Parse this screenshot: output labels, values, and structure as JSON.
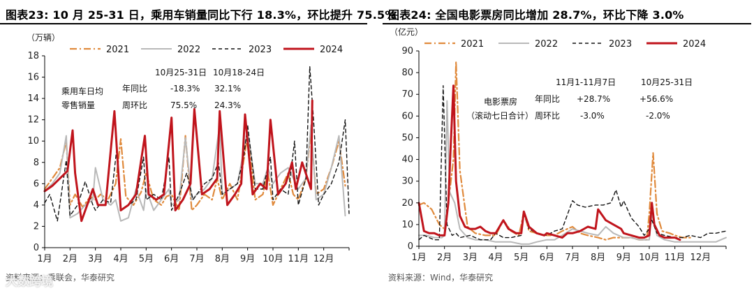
{
  "colors": {
    "c2021": "#e08a3c",
    "c2022": "#b8b8b8",
    "c2023": "#111111",
    "c2024": "#c0141c"
  },
  "left": {
    "title": "图表23:  10 月 25-31 日，乘用车销量同比下行 18.3%，环比提升 75.5%",
    "source": "资料来源：乘联会，华泰研究",
    "watermark": "大数跨境",
    "ann": {
      "label1": "乘用车日均",
      "label2": "零售销量",
      "h1": "10月25-31日",
      "h2": "10月18-24日",
      "r1": "年同比",
      "r2": "周环比",
      "v11": "-18.3%",
      "v12": "32.1%",
      "v21": "75.5%",
      "v22": "24.3%"
    }
  },
  "right": {
    "title": "图表24:  全国电影票房同比增加 28.7%，环比下降 3.0%",
    "source": "资料来源：Wind，华泰研究",
    "ann": {
      "label1": "电影票房",
      "label2": "（滚动七日合计）",
      "h1": "11月1-11月7日",
      "h2": "10月25-31日",
      "r1": "年同比",
      "r2": "周环比",
      "v11": "+28.7%",
      "v12": "+56.6%",
      "v21": "-3.0%",
      "v22": "-2.0%"
    }
  },
  "chart_data": [
    {
      "type": "line",
      "title": "10 月 25-31 日，乘用车销量同比下行 18.3%，环比提升 75.5%",
      "ylabel": "（万辆）",
      "ylim": [
        0,
        18
      ],
      "yticks": [
        0,
        2,
        4,
        6,
        8,
        10,
        12,
        14,
        16,
        18
      ],
      "xlim": [
        1,
        13
      ],
      "xticks": [
        "1月",
        "2月",
        "3月",
        "4月",
        "5月",
        "6月",
        "7月",
        "8月",
        "9月",
        "10月",
        "11月",
        "12月"
      ],
      "legend": [
        "2021",
        "2022",
        "2023",
        "2024"
      ],
      "series": [
        {
          "name": "2021",
          "x": [
            1,
            1.3,
            1.6,
            1.85,
            2.0,
            2.2,
            2.5,
            2.8,
            3.0,
            3.2,
            3.5,
            3.8,
            4.0,
            4.2,
            4.5,
            4.8,
            5.0,
            5.3,
            5.6,
            5.8,
            6.0,
            6.3,
            6.55,
            6.8,
            7.0,
            7.3,
            7.6,
            7.8,
            8.0,
            8.3,
            8.6,
            8.8,
            9.0,
            9.3,
            9.6,
            9.8,
            10.0,
            10.3,
            10.6,
            10.8,
            11.0,
            11.3,
            11.5,
            11.7,
            12.0,
            12.3,
            12.6,
            12.85
          ],
          "values": [
            5.5,
            6.5,
            7.5,
            10.0,
            4.0,
            5.0,
            3.8,
            4.8,
            4.5,
            5.0,
            4.5,
            6.0,
            10.2,
            4.8,
            4.0,
            5.2,
            7.0,
            4.5,
            4.0,
            4.8,
            5.0,
            3.5,
            10.5,
            3.5,
            4.0,
            5.0,
            4.5,
            6.5,
            4.5,
            6.0,
            4.5,
            7.5,
            10.5,
            4.5,
            5.0,
            7.0,
            4.0,
            5.5,
            7.0,
            5.0,
            4.5,
            6.5,
            11.0,
            5.0,
            5.5,
            7.5,
            10.0,
            5.8
          ]
        },
        {
          "name": "2022",
          "x": [
            1,
            1.3,
            1.6,
            1.85,
            2.0,
            2.3,
            2.6,
            2.9,
            3.0,
            3.3,
            3.6,
            3.8,
            4.0,
            4.3,
            4.6,
            4.9,
            5.0,
            5.3,
            5.6,
            5.9,
            6.0,
            6.3,
            6.55,
            6.8,
            7.0,
            7.3,
            7.6,
            7.9,
            8.0,
            8.3,
            8.6,
            8.8,
            9.0,
            9.3,
            9.6,
            9.8,
            10.0,
            10.3,
            10.6,
            10.9,
            11.0,
            11.3,
            11.5,
            11.7,
            12.0,
            12.3,
            12.6,
            12.85
          ],
          "values": [
            5.3,
            6.0,
            7.0,
            10.5,
            2.8,
            3.2,
            4.0,
            4.5,
            7.5,
            4.5,
            4.0,
            4.5,
            2.5,
            2.8,
            5.5,
            3.5,
            5.5,
            3.5,
            4.5,
            5.5,
            4.0,
            4.5,
            10.3,
            4.5,
            5.0,
            5.5,
            6.5,
            11.5,
            5.0,
            5.5,
            6.0,
            8.5,
            11.0,
            6.0,
            6.0,
            7.5,
            6.0,
            7.0,
            7.5,
            6.0,
            5.5,
            6.5,
            11.5,
            4.5,
            5.0,
            7.5,
            10.5,
            3.0
          ]
        },
        {
          "name": "2023",
          "x": [
            1,
            1.2,
            1.5,
            1.85,
            2.0,
            2.3,
            2.6,
            2.9,
            3.0,
            3.3,
            3.6,
            3.85,
            4.0,
            4.3,
            4.6,
            4.9,
            5.0,
            5.3,
            5.6,
            5.9,
            6.0,
            6.3,
            6.6,
            6.85,
            7.0,
            7.3,
            7.6,
            7.85,
            8.0,
            8.3,
            8.6,
            8.85,
            9.0,
            9.3,
            9.6,
            9.9,
            10.0,
            10.3,
            10.6,
            10.85,
            11.0,
            11.3,
            11.45,
            11.6,
            11.8,
            12.0,
            12.3,
            12.6,
            12.85,
            13.0
          ],
          "values": [
            4.2,
            5.0,
            2.5,
            8.2,
            3.0,
            4.0,
            6.2,
            4.0,
            3.5,
            4.5,
            4.2,
            9.5,
            3.5,
            4.0,
            4.5,
            8.5,
            4.5,
            5.0,
            4.5,
            8.5,
            3.5,
            5.0,
            7.0,
            4.5,
            5.0,
            6.0,
            6.5,
            8.0,
            5.0,
            5.5,
            6.0,
            8.5,
            11.5,
            5.5,
            5.5,
            8.5,
            4.5,
            5.5,
            5.0,
            10.0,
            4.0,
            6.5,
            17.0,
            12.0,
            4.0,
            5.0,
            6.0,
            8.0,
            12.0,
            3.2
          ]
        },
        {
          "name": "2024",
          "x": [
            1,
            1.3,
            1.6,
            1.9,
            2.1,
            2.2,
            2.45,
            2.75,
            2.9,
            3.1,
            3.4,
            3.75,
            4.0,
            4.3,
            4.6,
            4.95,
            5.1,
            5.4,
            5.7,
            6.0,
            6.15,
            6.45,
            6.75,
            6.9,
            7.2,
            7.5,
            7.8,
            7.9,
            8.2,
            8.5,
            8.75,
            8.9,
            9.2,
            9.5,
            9.75,
            9.9,
            10.2,
            10.5,
            10.75,
            10.9,
            11.15,
            11.5,
            11.55
          ],
          "values": [
            5.3,
            5.8,
            6.5,
            7.2,
            11.0,
            7.0,
            2.5,
            4.5,
            5.5,
            4.0,
            4.0,
            12.8,
            3.5,
            4.0,
            5.0,
            10.5,
            5.0,
            4.5,
            5.0,
            12.2,
            3.5,
            4.5,
            6.0,
            13.0,
            5.0,
            5.5,
            6.5,
            12.8,
            4.0,
            5.0,
            6.0,
            12.5,
            5.0,
            6.0,
            5.5,
            12.0,
            5.0,
            6.0,
            8.0,
            5.5,
            8.0,
            5.5,
            13.8
          ]
        }
      ]
    },
    {
      "type": "line",
      "title": "全国电影票房同比增加 28.7%，环比下降 3.0%",
      "ylabel": "（亿元）",
      "ylim": [
        0,
        90
      ],
      "yticks": [
        0,
        10,
        20,
        30,
        40,
        50,
        60,
        70,
        80,
        90
      ],
      "xlim": [
        1,
        13
      ],
      "xticks": [
        "1月",
        "2月",
        "3月",
        "4月",
        "5月",
        "6月",
        "7月",
        "8月",
        "9月",
        "10月",
        "11月",
        "12月"
      ],
      "legend": [
        "2021",
        "2022",
        "2023",
        "2024"
      ],
      "series": [
        {
          "name": "2021",
          "x": [
            1,
            1.2,
            1.5,
            1.8,
            2.0,
            2.2,
            2.35,
            2.45,
            2.6,
            2.9,
            3.2,
            3.6,
            4.0,
            4.3,
            4.6,
            4.9,
            5.0,
            5.1,
            5.3,
            5.6,
            6.0,
            6.3,
            6.6,
            7.0,
            7.3,
            7.6,
            8.0,
            8.3,
            8.6,
            9.0,
            9.3,
            9.6,
            9.9,
            10.0,
            10.15,
            10.3,
            10.5,
            10.8,
            11.0,
            11.3,
            11.6
          ],
          "values": [
            19,
            20,
            17,
            10,
            8,
            25,
            40,
            85,
            35,
            9,
            6,
            5,
            5,
            12,
            7,
            5,
            10,
            16,
            7,
            6,
            5,
            5,
            7,
            9,
            6,
            5,
            4,
            3,
            4,
            4,
            4,
            3,
            3,
            15,
            43,
            15,
            7,
            6,
            5,
            4,
            4
          ]
        },
        {
          "name": "2022",
          "x": [
            1,
            1.3,
            1.6,
            1.9,
            2.0,
            2.1,
            2.2,
            2.4,
            2.6,
            2.9,
            3.2,
            3.6,
            4.0,
            4.3,
            4.6,
            5.0,
            5.3,
            5.6,
            6.0,
            6.3,
            6.6,
            7.0,
            7.3,
            7.6,
            8.0,
            8.3,
            8.6,
            9.0,
            9.3,
            9.6,
            10.0,
            10.1,
            10.3,
            10.6,
            11.0,
            11.3,
            11.6,
            12.0,
            12.3,
            12.6,
            13.0
          ],
          "values": [
            5,
            5,
            4,
            4,
            5,
            67,
            25,
            20,
            8,
            4,
            3,
            3,
            2,
            2,
            2,
            1,
            1,
            2,
            3,
            3,
            5,
            8,
            7,
            6,
            5,
            9,
            6,
            4,
            4,
            3,
            3,
            15,
            5,
            3,
            2,
            2,
            2,
            2,
            2,
            2,
            4
          ]
        },
        {
          "name": "2023",
          "x": [
            1,
            1.2,
            1.4,
            1.6,
            1.8,
            1.95,
            2.1,
            2.3,
            2.45,
            2.6,
            3.0,
            3.4,
            3.8,
            4.0,
            4.3,
            4.6,
            5.0,
            5.1,
            5.3,
            5.6,
            6.0,
            6.3,
            6.6,
            7.0,
            7.2,
            7.5,
            7.9,
            8.2,
            8.5,
            8.7,
            8.9,
            9.0,
            9.3,
            9.6,
            9.8,
            10.0,
            10.1,
            10.3,
            10.6,
            11.0,
            11.3,
            11.6,
            12.0,
            12.3,
            12.6,
            13.0
          ],
          "values": [
            3,
            5,
            4,
            3,
            3,
            74,
            10,
            5,
            6,
            4,
            5,
            3,
            3,
            6,
            4,
            4,
            5,
            15,
            8,
            6,
            5,
            7,
            8,
            21,
            19,
            18,
            19,
            19,
            20,
            26,
            18,
            21,
            13,
            9,
            5,
            8,
            12,
            6,
            5,
            4,
            4,
            5,
            4,
            6,
            6,
            7
          ]
        },
        {
          "name": "2024",
          "x": [
            1,
            1.2,
            1.4,
            1.6,
            1.8,
            2.0,
            2.15,
            2.25,
            2.35,
            2.45,
            2.6,
            2.8,
            3.0,
            3.2,
            3.4,
            3.6,
            3.8,
            4.0,
            4.2,
            4.3,
            4.5,
            4.8,
            5.0,
            5.1,
            5.3,
            5.6,
            5.9,
            6.0,
            6.3,
            6.6,
            6.8,
            7.0,
            7.3,
            7.6,
            7.9,
            8.0,
            8.3,
            8.6,
            8.9,
            9.0,
            9.3,
            9.6,
            9.8,
            10.0,
            10.1,
            10.2,
            10.4,
            10.6,
            10.9,
            11.0,
            11.2
          ],
          "values": [
            20,
            7,
            6,
            6,
            5,
            5,
            20,
            48,
            74,
            30,
            14,
            9,
            8,
            8,
            9,
            7,
            6,
            6,
            10,
            12,
            8,
            6,
            6,
            16,
            9,
            6,
            5,
            6,
            5,
            4,
            6,
            6,
            7,
            9,
            8,
            17,
            12,
            10,
            8,
            6,
            5,
            4,
            4,
            5,
            20,
            10,
            5,
            4,
            4,
            4,
            3
          ]
        }
      ]
    }
  ]
}
